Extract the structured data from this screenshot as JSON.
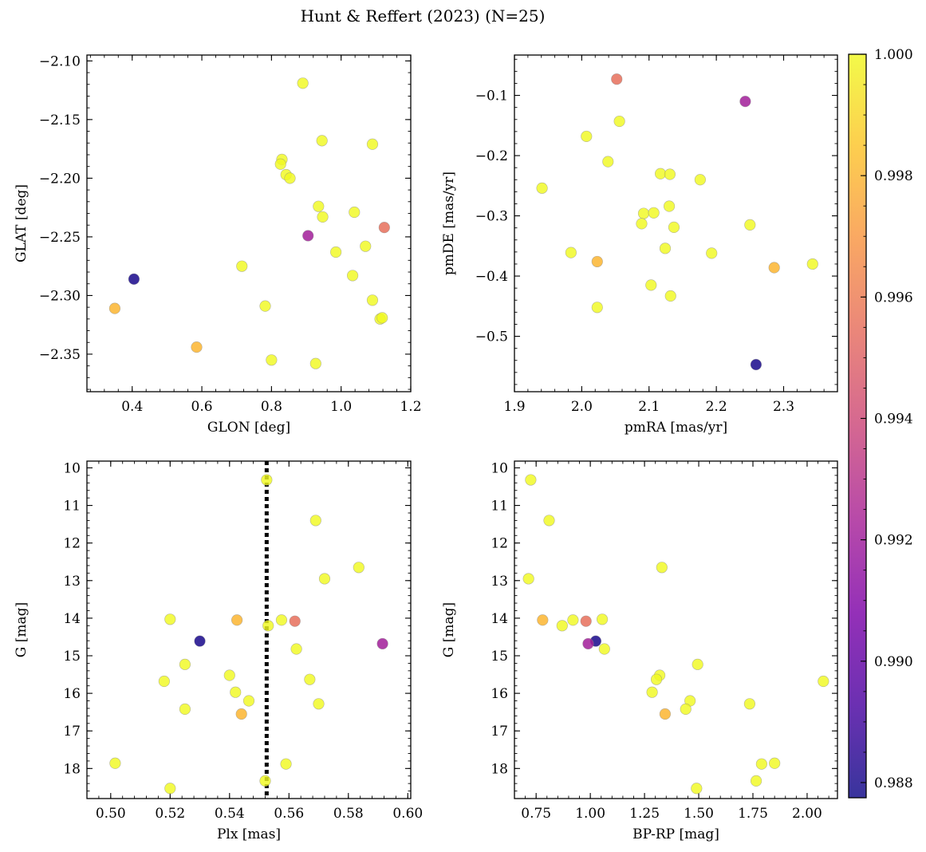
{
  "figure": {
    "title": "Hunt & Reffert (2023) (N=25)"
  },
  "colorbar": {
    "colormap": "plasma",
    "range": [
      0.98775,
      1.0
    ],
    "ticks": [
      0.988,
      0.99,
      0.992,
      0.994,
      0.996,
      0.998,
      1.0
    ],
    "tick_labels": [
      "0.988",
      "0.990",
      "0.992",
      "0.994",
      "0.996",
      "0.998",
      "1.000"
    ]
  },
  "chart_data": [
    {
      "type": "scatter",
      "id": "glon-glat",
      "xlabel": "GLON [deg]",
      "ylabel": "GLAT [deg]",
      "xlim": [
        0.27,
        1.2
      ],
      "ylim": [
        -2.382,
        -2.095
      ],
      "invert_y": false,
      "xticks": [
        0.4,
        0.6,
        0.8,
        1.0,
        1.2
      ],
      "xtick_labels": [
        "0.4",
        "0.6",
        "0.8",
        "1.0",
        "1.2"
      ],
      "yticks": [
        -2.1,
        -2.15,
        -2.2,
        -2.25,
        -2.3,
        -2.35
      ],
      "ytick_labels": [
        "−2.10",
        "−2.15",
        "−2.20",
        "−2.25",
        "−2.30",
        "−2.35"
      ],
      "x": [
        0.89,
        0.945,
        1.09,
        0.83,
        0.826,
        0.842,
        0.853,
        0.935,
        0.947,
        1.038,
        1.124,
        0.905,
        0.985,
        1.07,
        0.405,
        0.715,
        1.033,
        0.35,
        1.09,
        0.782,
        1.112,
        1.118,
        0.585,
        0.8,
        0.927
      ],
      "y": [
        -2.119,
        -2.168,
        -2.171,
        -2.184,
        -2.188,
        -2.197,
        -2.2,
        -2.224,
        -2.233,
        -2.229,
        -2.242,
        -2.249,
        -2.263,
        -2.258,
        -2.286,
        -2.275,
        -2.283,
        -2.311,
        -2.304,
        -2.309,
        -2.32,
        -2.319,
        -2.344,
        -2.355,
        -2.358
      ]
    },
    {
      "type": "scatter",
      "id": "pmra-pmde",
      "xlabel": "pmRA [mas/yr]",
      "ylabel": "pmDE [mas/yr]",
      "xlim": [
        1.9,
        2.38
      ],
      "ylim": [
        -0.592,
        -0.033
      ],
      "invert_y": false,
      "xticks": [
        1.9,
        2.0,
        2.1,
        2.2,
        2.3
      ],
      "xtick_labels": [
        "1.9",
        "2.0",
        "2.1",
        "2.2",
        "2.3"
      ],
      "yticks": [
        -0.1,
        -0.2,
        -0.3,
        -0.4,
        -0.5
      ],
      "ytick_labels": [
        "−0.1",
        "−0.2",
        "−0.3",
        "−0.4",
        "−0.5"
      ],
      "x": [
        2.052,
        2.243,
        2.056,
        2.007,
        2.039,
        1.941,
        2.117,
        2.131,
        2.176,
        2.13,
        2.092,
        2.107,
        2.089,
        2.25,
        2.124,
        2.137,
        1.984,
        2.193,
        2.023,
        2.286,
        2.343,
        2.103,
        2.023,
        2.132,
        2.259
      ],
      "y": [
        -0.073,
        -0.11,
        -0.143,
        -0.168,
        -0.21,
        -0.254,
        -0.23,
        -0.231,
        -0.24,
        -0.284,
        -0.296,
        -0.295,
        -0.313,
        -0.315,
        -0.354,
        -0.319,
        -0.361,
        -0.362,
        -0.376,
        -0.386,
        -0.38,
        -0.415,
        -0.452,
        -0.433,
        -0.547
      ]
    },
    {
      "type": "scatter",
      "id": "plx-g",
      "xlabel": "Plx [mas]",
      "ylabel": "G [mag]",
      "xlim": [
        0.492,
        0.601
      ],
      "ylim": [
        9.82,
        18.8
      ],
      "invert_y": true,
      "xticks": [
        0.5,
        0.52,
        0.54,
        0.56,
        0.58,
        0.6
      ],
      "xtick_labels": [
        "0.50",
        "0.52",
        "0.54",
        "0.56",
        "0.58",
        "0.60"
      ],
      "yticks": [
        10,
        11,
        12,
        13,
        14,
        15,
        16,
        17,
        18
      ],
      "ytick_labels": [
        "10",
        "11",
        "12",
        "13",
        "14",
        "15",
        "16",
        "17",
        "18"
      ],
      "vline": 0.5525,
      "x": [
        0.5525,
        0.569,
        0.5835,
        0.572,
        0.52,
        0.5425,
        0.5575,
        0.562,
        0.553,
        0.53,
        0.5915,
        0.5625,
        0.525,
        0.54,
        0.518,
        0.567,
        0.542,
        0.5465,
        0.57,
        0.525,
        0.544,
        0.5015,
        0.559,
        0.552,
        0.52
      ],
      "y": [
        10.32,
        11.4,
        12.65,
        12.95,
        14.03,
        14.05,
        14.05,
        14.08,
        14.2,
        14.61,
        14.68,
        14.82,
        15.23,
        15.52,
        15.68,
        15.63,
        15.97,
        16.2,
        16.28,
        16.42,
        16.55,
        17.86,
        17.88,
        18.33,
        18.53
      ],
      "colors": [
        1.0,
        1.0,
        1.0,
        1.0,
        1.0,
        0.998,
        1.0,
        0.9955,
        1.0,
        0.988,
        0.9921,
        1.0,
        1.0,
        1.0,
        1.0,
        1.0,
        1.0,
        1.0,
        1.0,
        1.0,
        0.998,
        1.0,
        1.0,
        1.0,
        1.0
      ]
    },
    {
      "type": "scatter",
      "id": "bprp-g",
      "xlabel": "BP-RP [mag]",
      "ylabel": "G [mag]",
      "xlim": [
        0.65,
        2.14
      ],
      "ylim": [
        9.82,
        18.8
      ],
      "invert_y": true,
      "xticks": [
        0.75,
        1.0,
        1.25,
        1.5,
        1.75,
        2.0
      ],
      "xtick_labels": [
        "0.75",
        "1.00",
        "1.25",
        "1.50",
        "1.75",
        "2.00"
      ],
      "yticks": [
        10,
        11,
        12,
        13,
        14,
        15,
        16,
        17,
        18
      ],
      "ytick_labels": [
        "10",
        "11",
        "12",
        "13",
        "14",
        "15",
        "16",
        "17",
        "18"
      ],
      "x": [
        0.725,
        0.81,
        0.715,
        1.33,
        0.78,
        0.92,
        0.98,
        1.055,
        0.87,
        1.025,
        0.99,
        1.065,
        1.495,
        1.32,
        1.305,
        2.075,
        1.285,
        1.46,
        1.735,
        1.44,
        1.345,
        1.85,
        1.79,
        1.765,
        1.49
      ],
      "y": [
        10.32,
        11.4,
        12.95,
        12.65,
        14.05,
        14.05,
        14.08,
        14.03,
        14.2,
        14.61,
        14.68,
        14.82,
        15.23,
        15.52,
        15.63,
        15.68,
        15.97,
        16.2,
        16.28,
        16.42,
        16.55,
        17.86,
        17.88,
        18.33,
        18.53
      ],
      "colors": [
        1.0,
        1.0,
        1.0,
        1.0,
        0.998,
        1.0,
        0.9955,
        1.0,
        1.0,
        0.988,
        0.9921,
        1.0,
        1.0,
        1.0,
        1.0,
        1.0,
        1.0,
        1.0,
        1.0,
        1.0,
        0.998,
        1.0,
        1.0,
        1.0,
        1.0
      ]
    }
  ],
  "point_colors_top": {
    "glon-glat": [
      1.0,
      1.0,
      1.0,
      1.0,
      1.0,
      1.0,
      1.0,
      1.0,
      1.0,
      1.0,
      0.9955,
      0.9921,
      1.0,
      1.0,
      0.988,
      1.0,
      1.0,
      0.998,
      1.0,
      1.0,
      1.0,
      1.0,
      0.998,
      1.0,
      1.0
    ],
    "pmra-pmde": [
      0.9955,
      0.9921,
      1.0,
      1.0,
      1.0,
      1.0,
      1.0,
      1.0,
      1.0,
      1.0,
      1.0,
      1.0,
      1.0,
      1.0,
      1.0,
      1.0,
      1.0,
      1.0,
      0.998,
      0.998,
      1.0,
      1.0,
      1.0,
      1.0,
      0.988
    ]
  }
}
